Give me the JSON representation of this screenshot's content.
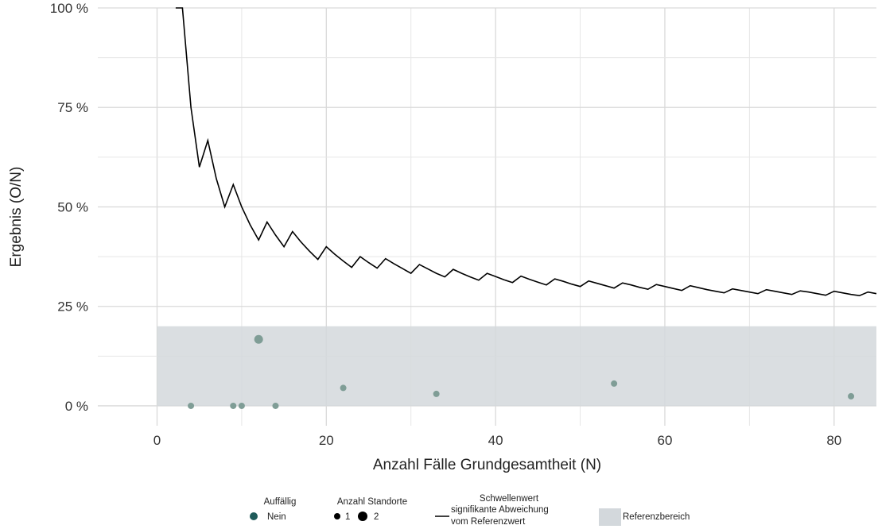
{
  "chart_data": {
    "type": "scatter",
    "xlabel": "Anzahl Fälle Grundgesamtheit (N)",
    "ylabel": "Ergebnis (O/N)",
    "xlim": [
      -7,
      85
    ],
    "ylim": [
      -5,
      100
    ],
    "x_ticks": [
      0,
      20,
      40,
      60,
      80
    ],
    "x_tick_labels": [
      "0",
      "20",
      "40",
      "60",
      "80"
    ],
    "y_ticks": [
      0,
      25,
      50,
      75,
      100
    ],
    "y_tick_labels": [
      "0 %",
      "25 %",
      "50 %",
      "75 %",
      "100 %"
    ],
    "grid": true,
    "reference_band": {
      "y_from": 0,
      "y_to": 20,
      "x_from": 0,
      "x_to": 85,
      "color": "#d3d8dc"
    },
    "points": [
      {
        "x": 4,
        "y": 0,
        "standorte": 1
      },
      {
        "x": 9,
        "y": 0,
        "standorte": 1
      },
      {
        "x": 10,
        "y": 0,
        "standorte": 1
      },
      {
        "x": 12,
        "y": 16.7,
        "standorte": 2
      },
      {
        "x": 14,
        "y": 0,
        "standorte": 1
      },
      {
        "x": 22,
        "y": 4.5,
        "standorte": 1
      },
      {
        "x": 33,
        "y": 3.0,
        "standorte": 1
      },
      {
        "x": 54,
        "y": 5.6,
        "standorte": 1
      },
      {
        "x": 82,
        "y": 2.4,
        "standorte": 1
      }
    ],
    "point_color": "#7f9d96",
    "threshold_line": {
      "color": "#000000",
      "points": [
        [
          2.2,
          100
        ],
        [
          3,
          100
        ],
        [
          4,
          75
        ],
        [
          5,
          60
        ],
        [
          6,
          66.7
        ],
        [
          7,
          57.1
        ],
        [
          8,
          50
        ],
        [
          9,
          55.6
        ],
        [
          10,
          50
        ],
        [
          11,
          45.5
        ],
        [
          12,
          41.7
        ],
        [
          13,
          46.2
        ],
        [
          14,
          42.9
        ],
        [
          15,
          40
        ],
        [
          16,
          43.8
        ],
        [
          17,
          41.2
        ],
        [
          18,
          38.9
        ],
        [
          19,
          36.8
        ],
        [
          20,
          40
        ],
        [
          21,
          38.1
        ],
        [
          22,
          36.4
        ],
        [
          23,
          34.8
        ],
        [
          24,
          37.5
        ],
        [
          25,
          36
        ],
        [
          26,
          34.6
        ],
        [
          27,
          37
        ],
        [
          28,
          35.7
        ],
        [
          29,
          34.5
        ],
        [
          30,
          33.3
        ],
        [
          31,
          35.5
        ],
        [
          32,
          34.4
        ],
        [
          33,
          33.3
        ],
        [
          34,
          32.4
        ],
        [
          35,
          34.3
        ],
        [
          36,
          33.3
        ],
        [
          37,
          32.4
        ],
        [
          38,
          31.6
        ],
        [
          39,
          33.3
        ],
        [
          40,
          32.5
        ],
        [
          41,
          31.7
        ],
        [
          42,
          31
        ],
        [
          43,
          32.6
        ],
        [
          44,
          31.8
        ],
        [
          45,
          31.1
        ],
        [
          46,
          30.4
        ],
        [
          47,
          31.9
        ],
        [
          48,
          31.3
        ],
        [
          49,
          30.6
        ],
        [
          50,
          30
        ],
        [
          51,
          31.4
        ],
        [
          52,
          30.8
        ],
        [
          53,
          30.2
        ],
        [
          54,
          29.6
        ],
        [
          55,
          30.9
        ],
        [
          56,
          30.4
        ],
        [
          57,
          29.8
        ],
        [
          58,
          29.3
        ],
        [
          59,
          30.5
        ],
        [
          60,
          30
        ],
        [
          61,
          29.5
        ],
        [
          62,
          29
        ],
        [
          63,
          30.2
        ],
        [
          64,
          29.7
        ],
        [
          65,
          29.2
        ],
        [
          66,
          28.8
        ],
        [
          67,
          28.4
        ],
        [
          68,
          29.4
        ],
        [
          69,
          29
        ],
        [
          70,
          28.6
        ],
        [
          71,
          28.2
        ],
        [
          72,
          29.2
        ],
        [
          73,
          28.8
        ],
        [
          74,
          28.4
        ],
        [
          75,
          28
        ],
        [
          76,
          28.9
        ],
        [
          77,
          28.6
        ],
        [
          78,
          28.2
        ],
        [
          79,
          27.8
        ],
        [
          80,
          28.8
        ],
        [
          81,
          28.4
        ],
        [
          82,
          28
        ],
        [
          83,
          27.7
        ],
        [
          84,
          28.6
        ],
        [
          85,
          28.2
        ]
      ]
    },
    "legend": {
      "position": "bottom",
      "auffaellig_title": "Auffällig",
      "auffaellig_item": "Nein",
      "auffaellig_color": "#1f5b5a",
      "standorte_title": "Anzahl Standorte",
      "standorte_items": [
        "1",
        "2"
      ],
      "schwelle_title": "Schwellenwert",
      "schwelle_line1": "signifikante Abweichung",
      "schwelle_line2": "vom Referenzwert",
      "referenz_label": "Referenzbereich"
    }
  }
}
